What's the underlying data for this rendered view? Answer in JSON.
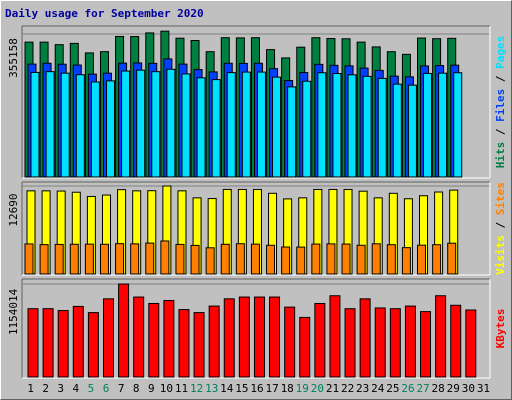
{
  "chart_data": {
    "type": "bar",
    "title": "Daily usage for September 2020",
    "days": [
      "1",
      "2",
      "3",
      "4",
      "5",
      "6",
      "7",
      "8",
      "9",
      "10",
      "11",
      "12",
      "13",
      "14",
      "15",
      "16",
      "17",
      "18",
      "19",
      "20",
      "21",
      "22",
      "23",
      "24",
      "25",
      "26",
      "27",
      "28",
      "29",
      "30",
      "31"
    ],
    "weekend_days": [
      "5",
      "6",
      "12",
      "13",
      "19",
      "20",
      "26",
      "27"
    ],
    "colors": {
      "hits": "#008040",
      "files": "#0040ff",
      "pages": "#00e0ff",
      "visits": "#ffff00",
      "sites": "#ff8000",
      "kbytes": "#ff0000",
      "weekday_label": "#000000",
      "weekend_label": "#00805c",
      "title": "#0000a0"
    },
    "panels": [
      {
        "id": "hits-files-pages",
        "max_label": "355158",
        "ymax": 355158,
        "legend": [
          {
            "text": "Hits",
            "color": "#008040"
          },
          {
            "text": "Files",
            "color": "#0040ff"
          },
          {
            "text": "Pages",
            "color": "#00e0ff"
          }
        ],
        "series": [
          {
            "name": "Hits",
            "color": "#008040",
            "values": [
              335100,
              335100,
              328900,
              332000,
              308500,
              311600,
              349100,
              348900,
              357800,
              362200,
              344800,
              339100,
              311500,
              346000,
              345600,
              346000,
              316700,
              296200,
              322600,
              346000,
              344000,
              343400,
              335200,
              323300,
              311500,
              305000,
              345200,
              343600,
              344500,
              null,
              null
            ]
          },
          {
            "name": "Files",
            "color": "#0040ff",
            "values": [
              280900,
              283000,
              280600,
              278600,
              256200,
              258500,
              283300,
              283700,
              282800,
              293700,
              280900,
              267400,
              261700,
              283000,
              282600,
              283000,
              269700,
              240300,
              260100,
              280300,
              277900,
              276500,
              271100,
              265400,
              251200,
              249400,
              276400,
              277400,
              278300,
              null,
              null
            ]
          },
          {
            "name": "Pages",
            "color": "#00e0ff",
            "values": [
              260400,
              262300,
              258600,
              254700,
              236900,
              239600,
              263800,
              265900,
              262300,
              268100,
              256700,
              247100,
              242700,
              259900,
              261200,
              261200,
              248800,
              224700,
              238600,
              259600,
              257700,
              254500,
              250700,
              245700,
              231400,
              229000,
              257800,
              258500,
              259600,
              null,
              null
            ]
          }
        ]
      },
      {
        "id": "visits-sites",
        "max_label": "12690",
        "ymax": 12690,
        "legend": [
          {
            "text": "Visits",
            "color": "#ffff00"
          },
          {
            "text": "Sites",
            "color": "#ff8000"
          }
        ],
        "series": [
          {
            "name": "Visits",
            "color": "#ffff00",
            "values": [
              12000,
              12000,
              11970,
              11800,
              11200,
              11400,
              12170,
              12000,
              12020,
              12690,
              12000,
              11000,
              10900,
              12200,
              12200,
              12200,
              11650,
              10850,
              11000,
              12200,
              12200,
              12200,
              11950,
              11000,
              11650,
              10870,
              11300,
              11830,
              12100,
              null,
              null
            ]
          },
          {
            "name": "Sites",
            "color": "#ff8000",
            "values": [
              4430,
              4330,
              4360,
              4380,
              4400,
              4380,
              4470,
              4440,
              4550,
              4850,
              4360,
              4220,
              3880,
              4380,
              4460,
              4400,
              4240,
              3990,
              3980,
              4410,
              4440,
              4410,
              4240,
              4450,
              4320,
              3900,
              4250,
              4320,
              4530,
              null,
              null
            ]
          }
        ]
      },
      {
        "id": "kbytes",
        "max_label": "1154014",
        "ymax": 1154014,
        "legend": [
          {
            "text": "KBytes",
            "color": "#ff0000"
          }
        ],
        "series": [
          {
            "name": "KBytes",
            "color": "#ff0000",
            "values": [
              851000,
              851000,
              828000,
              879000,
              803000,
              972000,
              1154000,
              994000,
              915000,
              951000,
              840000,
              803000,
              883000,
              972000,
              994000,
              994000,
              994000,
              870000,
              744000,
              915000,
              1010000,
              851000,
              972000,
              860000,
              851000,
              883000,
              815000,
              1010000,
              893000,
              835000,
              null
            ]
          }
        ]
      }
    ]
  }
}
